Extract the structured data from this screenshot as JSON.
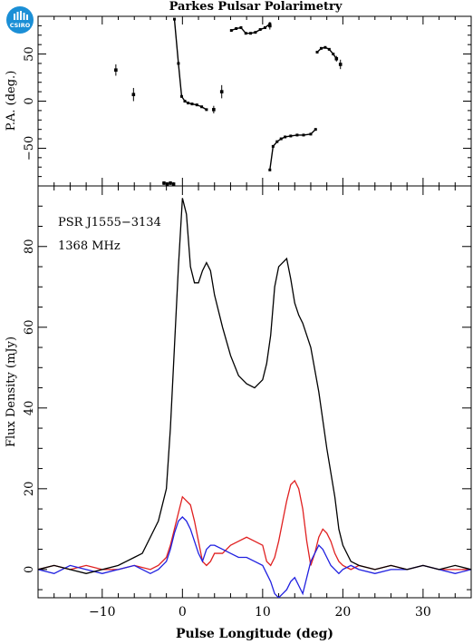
{
  "logo": {
    "text": "CSIRO",
    "color": "#1b8fd6"
  },
  "chart_data": [
    {
      "type": "scatter",
      "title": "Parkes Pulsar Polarimetry",
      "xlabel": "",
      "ylabel": "P.A. (deg.)",
      "xlim": [
        -18,
        36
      ],
      "ylim": [
        -90,
        90
      ],
      "ytick_labels": [
        "50",
        "0",
        "−50"
      ],
      "yticks": [
        50,
        0,
        -50
      ],
      "grid": false,
      "series": [
        {
          "color": "#000000",
          "style": "points-with-errorbars",
          "points": [
            {
              "x": -8.3,
              "y": 33,
              "err": 6
            },
            {
              "x": -6.1,
              "y": 7,
              "err": 7
            },
            {
              "x": -2.3,
              "y": -87,
              "err": 2
            },
            {
              "x": -1.9,
              "y": -88,
              "err": 2
            },
            {
              "x": -1.5,
              "y": -87,
              "err": 2
            },
            {
              "x": -1.1,
              "y": -88,
              "err": 2
            },
            {
              "x": 4.9,
              "y": 10,
              "err": 7
            },
            {
              "x": 3.9,
              "y": -9,
              "err": 4
            },
            {
              "x": 10.9,
              "y": 80,
              "err": 4
            },
            {
              "x": 19.2,
              "y": 45,
              "err": 3
            },
            {
              "x": 19.7,
              "y": 39,
              "err": 5
            }
          ]
        },
        {
          "color": "#000000",
          "style": "connected",
          "segments": [
            {
              "x": [
                -1.0,
                -0.5,
                -0.1,
                0.3,
                0.7,
                1.2,
                1.8,
                2.4,
                3.0
              ],
              "y": [
                87,
                40,
                5,
                0,
                -2,
                -3,
                -4,
                -6,
                -9
              ]
            },
            {
              "x": [
                6.1,
                6.7,
                7.3,
                7.9,
                8.5,
                9.1,
                9.7,
                10.3,
                10.9
              ],
              "y": [
                75,
                77,
                78,
                72,
                72,
                73,
                76,
                78,
                82
              ]
            },
            {
              "x": [
                10.9,
                11.3,
                11.8,
                12.3,
                12.8,
                13.5,
                14.3,
                15.1,
                16.0,
                16.6
              ],
              "y": [
                -73,
                -48,
                -43,
                -40,
                -38,
                -37,
                -36,
                -36,
                -35,
                -30
              ]
            },
            {
              "x": [
                16.8,
                17.3,
                17.8,
                18.3,
                18.8,
                19.2
              ],
              "y": [
                52,
                56,
                57,
                55,
                50,
                45
              ]
            }
          ]
        }
      ]
    },
    {
      "type": "line",
      "title": "",
      "xlabel": "Pulse Longitude (deg)",
      "ylabel": "Flux Density (mJy)",
      "xlim": [
        -18,
        36
      ],
      "ylim": [
        -7,
        95
      ],
      "xticks": [
        -10,
        0,
        10,
        20,
        30
      ],
      "xtick_labels": [
        "−10",
        "0",
        "10",
        "20",
        "30"
      ],
      "yticks": [
        0,
        20,
        40,
        60,
        80
      ],
      "ytick_labels": [
        "0",
        "20",
        "40",
        "60",
        "80"
      ],
      "grid": false,
      "annotations": [
        "PSR J1555−3134",
        "1368 MHz"
      ],
      "series": [
        {
          "color": "#000000",
          "x": [
            -18,
            -16,
            -14,
            -12,
            -10,
            -8,
            -7,
            -6,
            -5,
            -4,
            -3,
            -2,
            -1.5,
            -1,
            -0.5,
            0,
            0.5,
            1,
            1.5,
            2,
            2.5,
            3,
            3.5,
            4,
            5,
            6,
            7,
            8,
            9,
            10,
            10.5,
            11,
            11.5,
            12,
            12.5,
            13,
            13.5,
            14,
            14.5,
            15,
            15.5,
            16,
            17,
            18,
            19,
            19.5,
            20,
            21,
            22,
            24,
            26,
            28,
            30,
            32,
            34,
            36
          ],
          "y": [
            0,
            1,
            0,
            -1,
            0,
            1,
            2,
            3,
            4,
            8,
            12,
            20,
            35,
            55,
            75,
            92,
            88,
            75,
            71,
            71,
            74,
            76,
            74,
            68,
            60,
            53,
            48,
            46,
            45,
            47,
            51,
            58,
            70,
            75,
            76,
            77,
            72,
            66,
            63,
            61,
            58,
            55,
            44,
            30,
            18,
            10,
            6,
            2,
            1,
            0,
            1,
            0,
            1,
            0,
            1,
            0
          ]
        },
        {
          "color": "#e02020",
          "x": [
            -18,
            -16,
            -14,
            -12,
            -10,
            -8,
            -6,
            -4,
            -3,
            -2,
            -1.5,
            -1,
            -0.5,
            0,
            0.5,
            1,
            1.5,
            2,
            2.5,
            3,
            3.5,
            4,
            5,
            6,
            7,
            8,
            9,
            10,
            10.5,
            11,
            11.5,
            12,
            12.5,
            13,
            13.5,
            14,
            14.5,
            15,
            15.5,
            16,
            16.5,
            17,
            17.5,
            18,
            18.5,
            19,
            19.5,
            20,
            21,
            22,
            24,
            26,
            28,
            30,
            32,
            34,
            36
          ],
          "y": [
            0,
            1,
            0,
            1,
            0,
            0,
            1,
            0,
            1,
            3,
            6,
            10,
            14,
            18,
            17,
            16,
            12,
            7,
            2,
            1,
            2,
            4,
            4,
            6,
            7,
            8,
            7,
            6,
            2,
            1,
            3,
            7,
            12,
            17,
            21,
            22,
            20,
            15,
            7,
            1,
            4,
            8,
            10,
            9,
            7,
            4,
            2,
            1,
            0,
            1,
            0,
            1,
            0,
            1,
            0,
            0,
            0
          ]
        },
        {
          "color": "#2020e0",
          "x": [
            -18,
            -16,
            -14,
            -12,
            -10,
            -8,
            -6,
            -4,
            -3,
            -2,
            -1.5,
            -1,
            -0.5,
            0,
            0.5,
            1,
            1.5,
            2,
            2.5,
            3,
            3.5,
            4,
            5,
            6,
            7,
            8,
            9,
            10,
            10.5,
            11,
            11.5,
            12,
            12.5,
            13,
            13.5,
            14,
            14.5,
            15,
            15.5,
            16,
            16.5,
            17,
            17.5,
            18,
            18.5,
            19,
            19.5,
            20,
            21,
            22,
            24,
            26,
            28,
            30,
            32,
            34,
            36
          ],
          "y": [
            0,
            -1,
            1,
            0,
            -1,
            0,
            1,
            -1,
            0,
            2,
            5,
            9,
            12,
            13,
            12,
            10,
            7,
            4,
            2,
            5,
            6,
            6,
            5,
            4,
            3,
            3,
            2,
            1,
            -1,
            -3,
            -6,
            -7,
            -6,
            -5,
            -3,
            -2,
            -4,
            -6,
            -2,
            2,
            4,
            6,
            5,
            3,
            1,
            0,
            -1,
            0,
            1,
            0,
            -1,
            0,
            0,
            1,
            0,
            -1,
            0
          ]
        }
      ]
    }
  ]
}
